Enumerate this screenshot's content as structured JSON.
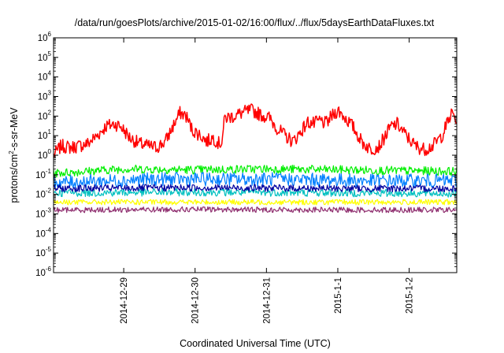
{
  "chart_data": {
    "type": "line",
    "title": "/data/run/goesPlots/archive/2015-01-02/16:00/flux/../flux/5daysEarthDataFluxes.txt",
    "xlabel": "Coordinated Universal Time (UTC)",
    "ylabel": "protons/cm²-s-sr-MeV",
    "ylabel_parts": {
      "pre": "protons/cm",
      "sup": "2",
      "post": "-s-sr-MeV"
    },
    "yscale": "log",
    "ylim": [
      1e-06,
      1000000.0
    ],
    "y_tick_labels": [
      {
        "base": "10",
        "exp": "-6"
      },
      {
        "base": "10",
        "exp": "-5"
      },
      {
        "base": "10",
        "exp": "-4"
      },
      {
        "base": "10",
        "exp": "-3"
      },
      {
        "base": "10",
        "exp": "-2"
      },
      {
        "base": "10",
        "exp": "-1"
      },
      {
        "base": "10",
        "exp": "0"
      },
      {
        "base": "10",
        "exp": "1"
      },
      {
        "base": "10",
        "exp": "2"
      },
      {
        "base": "10",
        "exp": "3"
      },
      {
        "base": "10",
        "exp": "4"
      },
      {
        "base": "10",
        "exp": "5"
      },
      {
        "base": "10",
        "exp": "6"
      }
    ],
    "x_axis": {
      "type": "date",
      "range": [
        "2014-12-28 00:24",
        "2015-01-02 16:00"
      ],
      "tick_labels": [
        "2014-12-29",
        "2014-12-30",
        "2014-12-31",
        "2015-1-1",
        "2015-1-2"
      ],
      "tick_dates": [
        "2014-12-29",
        "2014-12-30",
        "2014-12-31",
        "2015-01-01",
        "2015-01-02"
      ]
    },
    "grid": false,
    "legend": "none",
    "series": [
      {
        "color": "#ff0000",
        "noise": 0.35,
        "points": [
          [
            "2014-12-28 00:24",
            1.0
          ],
          [
            "2014-12-28 03:00",
            3.0
          ],
          [
            "2014-12-28 06:00",
            2.5
          ],
          [
            "2014-12-28 09:00",
            3.0
          ],
          [
            "2014-12-28 12:00",
            4.0
          ],
          [
            "2014-12-28 15:00",
            10
          ],
          [
            "2014-12-28 18:00",
            30
          ],
          [
            "2014-12-28 21:00",
            40
          ],
          [
            "2014-12-28 23:00",
            30
          ],
          [
            "2014-12-29 02:00",
            8
          ],
          [
            "2014-12-29 05:00",
            4
          ],
          [
            "2014-12-29 08:00",
            3
          ],
          [
            "2014-12-29 11:00",
            2.5
          ],
          [
            "2014-12-29 14:00",
            5
          ],
          [
            "2014-12-29 17:00",
            40
          ],
          [
            "2014-12-29 19:00",
            150
          ],
          [
            "2014-12-29 21:00",
            100
          ],
          [
            "2014-12-29 23:00",
            20
          ],
          [
            "2014-12-30 02:00",
            10
          ],
          [
            "2014-12-30 04:00",
            5
          ],
          [
            "2014-12-30 06:00",
            8
          ],
          [
            "2014-12-30 08:00",
            4
          ],
          [
            "2014-12-30 09:00",
            5
          ],
          [
            "2014-12-30 10:00",
            80
          ],
          [
            "2014-12-30 13:00",
            100
          ],
          [
            "2014-12-30 16:00",
            150
          ],
          [
            "2014-12-30 19:00",
            200
          ],
          [
            "2014-12-30 22:00",
            120
          ],
          [
            "2014-12-31 01:00",
            80
          ],
          [
            "2014-12-31 04:00",
            20
          ],
          [
            "2014-12-31 07:00",
            8
          ],
          [
            "2014-12-31 09:00",
            5
          ],
          [
            "2014-12-31 12:00",
            20
          ],
          [
            "2014-12-31 14:00",
            50
          ],
          [
            "2014-12-31 16:00",
            40
          ],
          [
            "2014-12-31 18:00",
            60
          ],
          [
            "2014-12-31 20:00",
            40
          ],
          [
            "2014-12-31 22:00",
            100
          ],
          [
            "2015-01-01 00:00",
            200
          ],
          [
            "2015-01-01 02:00",
            100
          ],
          [
            "2015-01-01 05:00",
            30
          ],
          [
            "2015-01-01 08:00",
            5
          ],
          [
            "2015-01-01 11:00",
            2
          ],
          [
            "2015-01-01 14:00",
            3
          ],
          [
            "2015-01-01 16:00",
            10
          ],
          [
            "2015-01-01 18:00",
            30
          ],
          [
            "2015-01-01 20:00",
            40
          ],
          [
            "2015-01-01 23:00",
            10
          ],
          [
            "2015-01-02 02:00",
            3
          ],
          [
            "2015-01-02 05:00",
            2
          ],
          [
            "2015-01-02 08:00",
            3
          ],
          [
            "2015-01-02 11:00",
            10
          ],
          [
            "2015-01-02 13:00",
            50
          ],
          [
            "2015-01-02 14:30",
            150
          ],
          [
            "2015-01-02 16:00",
            50
          ]
        ]
      },
      {
        "color": "#00ee00",
        "noise": 0.22,
        "points": [
          [
            "2014-12-28 00:24",
            0.12
          ],
          [
            "2014-12-29 00:00",
            0.2
          ],
          [
            "2014-12-30 00:00",
            0.18
          ],
          [
            "2014-12-31 00:00",
            0.2
          ],
          [
            "2015-01-01 00:00",
            0.18
          ],
          [
            "2015-01-02 00:00",
            0.16
          ],
          [
            "2015-01-02 16:00",
            0.15
          ]
        ]
      },
      {
        "color": "#0080ff",
        "noise": 0.35,
        "points": [
          [
            "2014-12-28 00:24",
            0.04
          ],
          [
            "2014-12-29 12:00",
            0.06
          ],
          [
            "2014-12-31 00:00",
            0.06
          ],
          [
            "2015-01-01 12:00",
            0.05
          ],
          [
            "2015-01-02 16:00",
            0.05
          ]
        ]
      },
      {
        "color": "#00c0c0",
        "noise": 0.2,
        "points": [
          [
            "2014-12-28 00:24",
            0.012
          ],
          [
            "2014-12-30 00:00",
            0.013
          ],
          [
            "2015-01-01 00:00",
            0.012
          ],
          [
            "2015-01-02 16:00",
            0.011
          ]
        ]
      },
      {
        "color": "#0000a0",
        "noise": 0.18,
        "points": [
          [
            "2014-12-28 00:24",
            0.02
          ],
          [
            "2014-12-30 00:00",
            0.022
          ],
          [
            "2015-01-01 00:00",
            0.02
          ],
          [
            "2015-01-02 16:00",
            0.02
          ]
        ]
      },
      {
        "color": "#ffff00",
        "noise": 0.14,
        "points": [
          [
            "2014-12-28 00:24",
            0.004
          ],
          [
            "2014-12-30 00:00",
            0.004
          ],
          [
            "2015-01-01 00:00",
            0.004
          ],
          [
            "2015-01-02 16:00",
            0.004
          ]
        ]
      },
      {
        "color": "#903070",
        "noise": 0.14,
        "points": [
          [
            "2014-12-28 00:24",
            0.0016
          ],
          [
            "2014-12-30 00:00",
            0.0017
          ],
          [
            "2015-01-01 00:00",
            0.0016
          ],
          [
            "2015-01-02 16:00",
            0.0016
          ]
        ]
      }
    ]
  }
}
